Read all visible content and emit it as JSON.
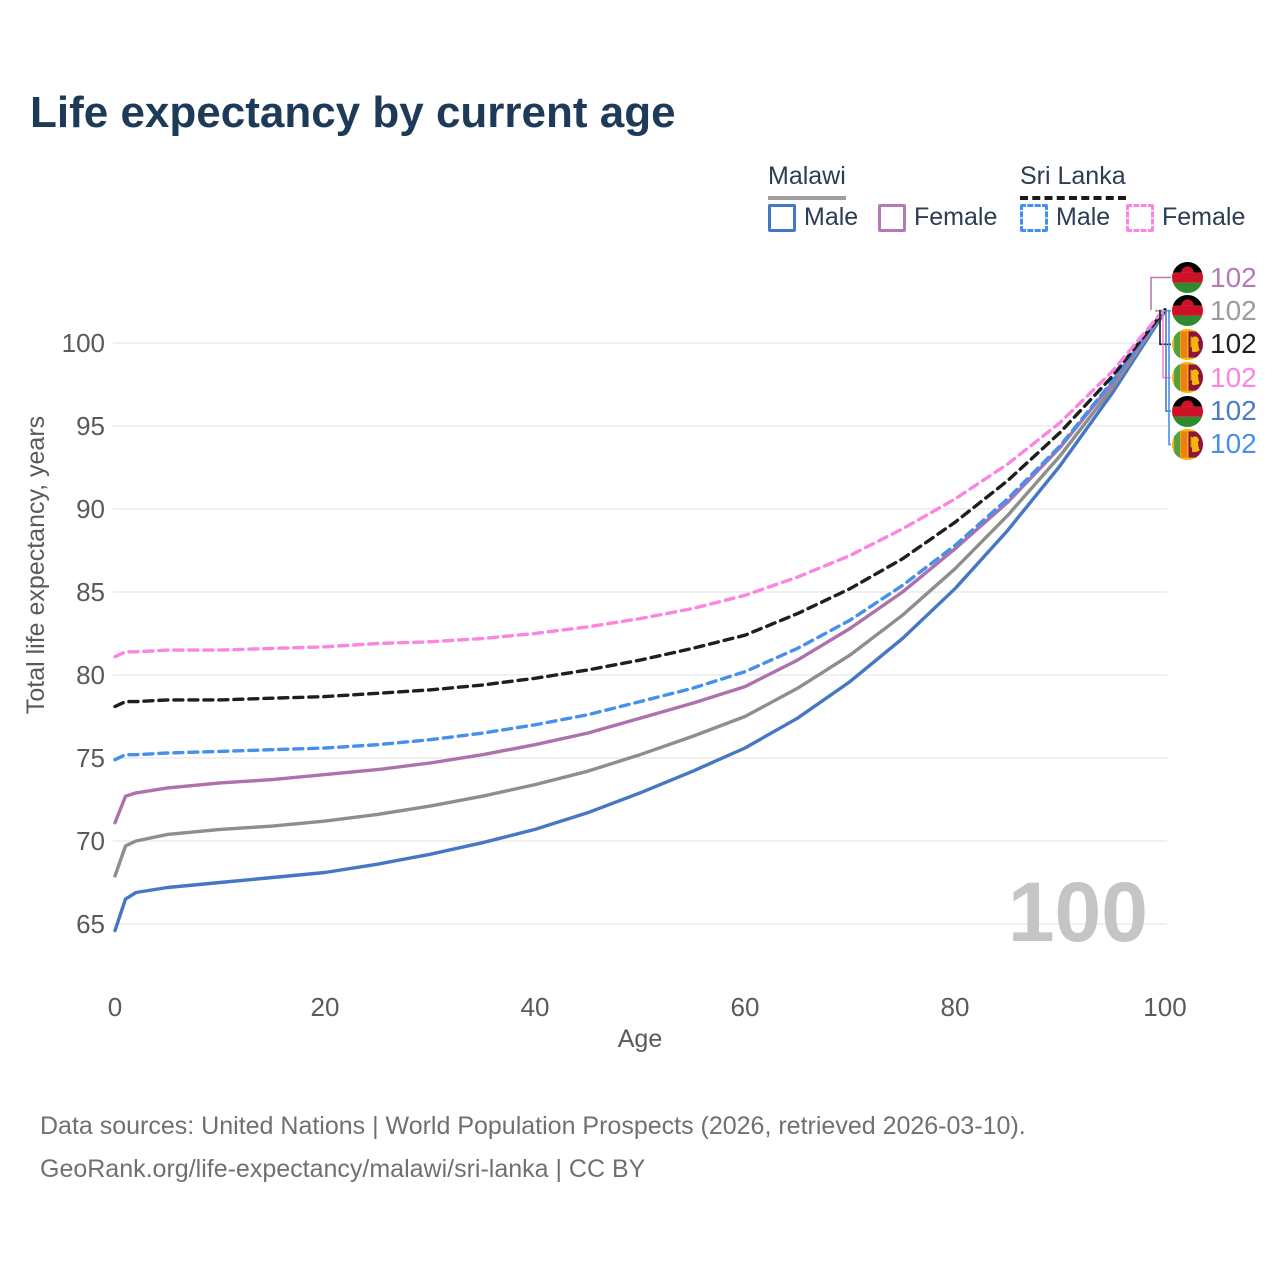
{
  "title": "Life expectancy by current age",
  "legend": {
    "groups": [
      {
        "id": "malawi",
        "label": "Malawi",
        "line_style": "solid",
        "line_color": "#9e9e9e",
        "items": [
          {
            "id": "malawi-male",
            "label": "Male",
            "color": "#4677c4",
            "style": "solid"
          },
          {
            "id": "malawi-female",
            "label": "Female",
            "color": "#b57ab5",
            "style": "solid"
          }
        ]
      },
      {
        "id": "sri-lanka",
        "label": "Sri Lanka",
        "line_style": "dashed",
        "line_color": "#1a1a1a",
        "items": [
          {
            "id": "sri-lanka-male",
            "label": "Male",
            "color": "#4590ec",
            "style": "dashed"
          },
          {
            "id": "sri-lanka-female",
            "label": "Female",
            "color": "#fb85e0",
            "style": "dashed"
          }
        ]
      }
    ]
  },
  "chart_data": {
    "type": "line",
    "title": "Life expectancy by current age",
    "xlabel": "Age",
    "ylabel": "Total life expectancy, years",
    "xlim": [
      0,
      100
    ],
    "ylim": [
      63,
      103
    ],
    "x_ticks": [
      0,
      20,
      40,
      60,
      80,
      100
    ],
    "y_ticks": [
      65,
      70,
      75,
      80,
      85,
      90,
      95,
      100
    ],
    "grid": "horizontal",
    "x": [
      0,
      1,
      2,
      5,
      10,
      15,
      20,
      25,
      30,
      35,
      40,
      45,
      50,
      55,
      60,
      65,
      70,
      75,
      80,
      85,
      90,
      95,
      100
    ],
    "series": [
      {
        "id": "malawi-male",
        "name": "Malawi Male",
        "country": "Malawi",
        "sex": "male",
        "color": "#4677c4",
        "dash": false,
        "values": [
          64.6,
          66.5,
          66.9,
          67.2,
          67.5,
          67.8,
          68.1,
          68.6,
          69.2,
          69.9,
          70.7,
          71.7,
          72.9,
          74.2,
          75.6,
          77.4,
          79.6,
          82.2,
          85.2,
          88.7,
          92.6,
          97.0,
          101.9
        ]
      },
      {
        "id": "malawi-total",
        "name": "Malawi",
        "country": "Malawi",
        "sex": "both",
        "color": "#8e8e8e",
        "dash": false,
        "values": [
          67.9,
          69.7,
          70.0,
          70.4,
          70.7,
          70.9,
          71.2,
          71.6,
          72.1,
          72.7,
          73.4,
          74.2,
          75.2,
          76.3,
          77.5,
          79.2,
          81.2,
          83.6,
          86.4,
          89.6,
          93.2,
          97.3,
          102.0
        ]
      },
      {
        "id": "malawi-female",
        "name": "Malawi Female",
        "country": "Malawi",
        "sex": "female",
        "color": "#ad72ad",
        "dash": false,
        "values": [
          71.1,
          72.7,
          72.9,
          73.2,
          73.5,
          73.7,
          74.0,
          74.3,
          74.7,
          75.2,
          75.8,
          76.5,
          77.4,
          78.3,
          79.3,
          80.9,
          82.8,
          85.0,
          87.6,
          90.4,
          93.7,
          97.6,
          102.0
        ]
      },
      {
        "id": "sri-lanka-male",
        "name": "Sri Lanka Male",
        "country": "Sri Lanka",
        "sex": "male",
        "color": "#4590ec",
        "dash": true,
        "values": [
          74.9,
          75.2,
          75.2,
          75.3,
          75.4,
          75.5,
          75.6,
          75.8,
          76.1,
          76.5,
          77.0,
          77.6,
          78.4,
          79.2,
          80.2,
          81.6,
          83.3,
          85.4,
          87.8,
          90.6,
          93.8,
          97.7,
          102.0
        ]
      },
      {
        "id": "sri-lanka-total",
        "name": "Sri Lanka",
        "country": "Sri Lanka",
        "sex": "both",
        "color": "#1f1f1f",
        "dash": true,
        "values": [
          78.1,
          78.4,
          78.4,
          78.5,
          78.5,
          78.6,
          78.7,
          78.9,
          79.1,
          79.4,
          79.8,
          80.3,
          80.9,
          81.6,
          82.4,
          83.7,
          85.2,
          87.0,
          89.2,
          91.7,
          94.6,
          98.0,
          102.0
        ]
      },
      {
        "id": "sri-lanka-female",
        "name": "Sri Lanka Female",
        "country": "Sri Lanka",
        "sex": "female",
        "color": "#fb85e0",
        "dash": true,
        "values": [
          81.1,
          81.4,
          81.4,
          81.5,
          81.5,
          81.6,
          81.7,
          81.9,
          82.0,
          82.2,
          82.5,
          82.9,
          83.4,
          84.0,
          84.8,
          85.9,
          87.2,
          88.8,
          90.6,
          92.7,
          95.2,
          98.3,
          102.1
        ]
      }
    ],
    "legend_position": "top-right"
  },
  "end_labels": [
    {
      "flag": "malawi",
      "value": "102",
      "color": "#b57ab5",
      "series": "malawi-female"
    },
    {
      "flag": "malawi",
      "value": "102",
      "color": "#9c9c9c",
      "series": "malawi-total"
    },
    {
      "flag": "sri-lanka",
      "value": "102",
      "color": "#1f1f1f",
      "series": "sri-lanka-total"
    },
    {
      "flag": "sri-lanka",
      "value": "102",
      "color": "#fb85e0",
      "series": "sri-lanka-female"
    },
    {
      "flag": "malawi",
      "value": "102",
      "color": "#4a7cc9",
      "series": "malawi-male"
    },
    {
      "flag": "sri-lanka",
      "value": "102",
      "color": "#4590ec",
      "series": "sri-lanka-male"
    }
  ],
  "watermark": "100",
  "footer": {
    "line1": "Data sources: United Nations | World Population Prospects (2026, retrieved 2026-03-10).",
    "line2": "GeoRank.org/life-expectancy/malawi/sri-lanka | CC BY"
  }
}
